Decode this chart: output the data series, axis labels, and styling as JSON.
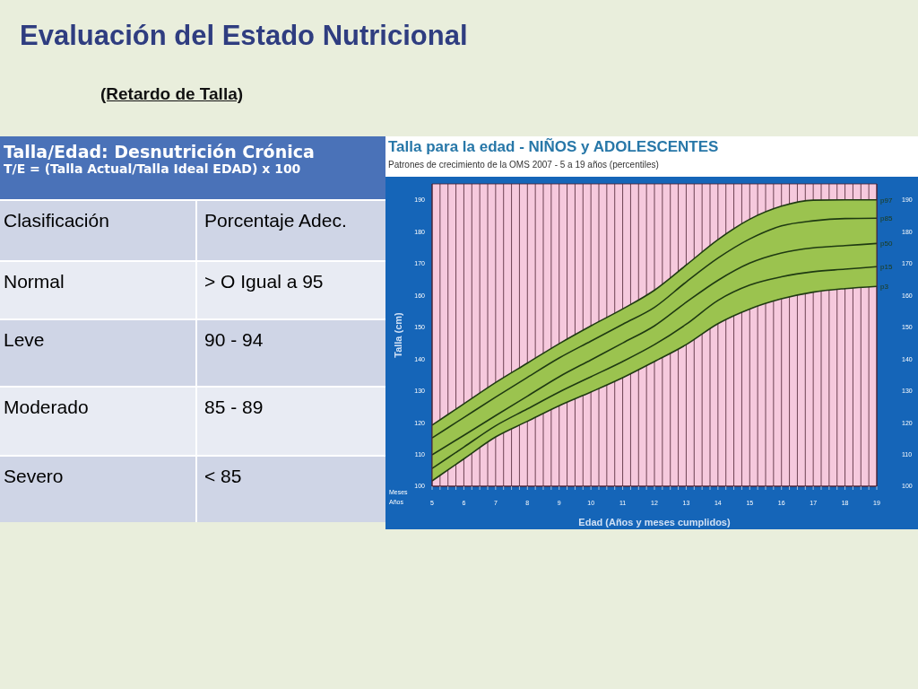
{
  "chart_data": [
    {
      "type": "other",
      "title": "Evaluación del Estado Nutricional",
      "subtitle": "(Retardo de Talla)",
      "annotations": [
        "Talla/Edad: Desnutrición Crónica",
        "T/E = (Talla Actual/Talla Ideal EDAD) x 100",
        "Clasificación",
        "Porcentaje Adec.",
        "Normal",
        "> O Igual a 95",
        "Leve",
        "90 - 94",
        "Moderado",
        "85 - 89",
        "Severo",
        "< 85"
      ]
    },
    {
      "type": "line",
      "title": "Talla para la edad - NIÑOS y ADOLESCENTES",
      "subtitle": "Patrones de crecimiento de la OMS 2007 - 5 a 19 años (percentiles)",
      "xlabel": "Edad (Años y meses cumplidos)",
      "ylabel": "Talla (cm)",
      "annotations": [
        "Meses",
        "Años"
      ],
      "x": [
        5,
        6,
        7,
        8,
        9,
        10,
        11,
        12,
        13,
        14,
        15,
        16,
        17,
        18,
        19
      ],
      "series": [
        {
          "name": "p97",
          "color": "#1f3a12",
          "values": [
            119.2,
            125.9,
            132.6,
            138.7,
            144.8,
            150.4,
            155.7,
            161.6,
            169.5,
            177.5,
            183.9,
            188,
            189.9,
            190,
            190
          ]
        },
        {
          "name": "p85",
          "color": "#1f3a12",
          "values": [
            115.2,
            121.6,
            128,
            134.2,
            140.3,
            145.6,
            150.9,
            156.2,
            164.2,
            171.7,
            177.7,
            181.8,
            183.4,
            184.1,
            184.2
          ]
        },
        {
          "name": "p50",
          "color": "#1f3a12",
          "values": [
            109.9,
            116,
            122.2,
            128.3,
            134.4,
            139.7,
            145,
            150.4,
            157.8,
            164.7,
            170.1,
            173.3,
            174.9,
            175.6,
            176.3
          ],
          "lower": [
            101.7,
            108.6,
            115.5,
            120.4,
            125.3,
            129.6,
            134.1,
            139.2,
            144.5,
            151.1,
            155.7,
            158.9,
            161,
            162.1,
            162.8
          ],
          "upper": [
            119.2,
            125.9,
            132.6,
            138.7,
            144.8,
            150.4,
            155.7,
            161.6,
            169.5,
            177.5,
            183.9,
            188,
            189.9,
            190,
            190
          ]
        },
        {
          "name": "p15",
          "color": "#1f3a12",
          "values": [
            105.6,
            112.3,
            119,
            124.3,
            129.6,
            134.4,
            139.2,
            144.5,
            150.9,
            158.4,
            163.2,
            165.8,
            167.4,
            168.2,
            169
          ]
        },
        {
          "name": "p3",
          "color": "#1f3a12",
          "values": [
            101.7,
            108.6,
            115.5,
            120.4,
            125.3,
            129.6,
            134.1,
            139.2,
            144.5,
            151.1,
            155.7,
            158.9,
            161,
            162.1,
            162.8
          ]
        }
      ],
      "xlim": [
        5,
        19
      ],
      "xticks": [
        5,
        {
          "value": 5.25,
          "label": null
        },
        {
          "value": 5.5,
          "label": null
        },
        {
          "value": 5.75,
          "label": null
        },
        6,
        {
          "value": 6.25,
          "label": null
        },
        {
          "value": 6.5,
          "label": null
        },
        {
          "value": 6.75,
          "label": null
        },
        7,
        {
          "value": 7.25,
          "label": null
        },
        {
          "value": 7.5,
          "label": null
        },
        {
          "value": 7.75,
          "label": null
        },
        8,
        {
          "value": 8.25,
          "label": null
        },
        {
          "value": 8.5,
          "label": null
        },
        {
          "value": 8.75,
          "label": null
        },
        9,
        {
          "value": 9.25,
          "label": null
        },
        {
          "value": 9.5,
          "label": null
        },
        {
          "value": 9.75,
          "label": null
        },
        10,
        {
          "value": 10.25,
          "label": null
        },
        {
          "value": 10.5,
          "label": null
        },
        {
          "value": 10.75,
          "label": null
        },
        11,
        {
          "value": 11.25,
          "label": null
        },
        {
          "value": 11.5,
          "label": null
        },
        {
          "value": 11.75,
          "label": null
        },
        12,
        {
          "value": 12.25,
          "label": null
        },
        {
          "value": 12.5,
          "label": null
        },
        {
          "value": 12.75,
          "label": null
        },
        13,
        {
          "value": 13.25,
          "label": null
        },
        {
          "value": 13.5,
          "label": null
        },
        {
          "value": 13.75,
          "label": null
        },
        14,
        {
          "value": 14.25,
          "label": null
        },
        {
          "value": 14.5,
          "label": null
        },
        {
          "value": 14.75,
          "label": null
        },
        15,
        {
          "value": 15.25,
          "label": null
        },
        {
          "value": 15.5,
          "label": null
        },
        {
          "value": 15.75,
          "label": null
        },
        16,
        {
          "value": 16.25,
          "label": null
        },
        {
          "value": 16.5,
          "label": null
        },
        {
          "value": 16.75,
          "label": null
        },
        17,
        {
          "value": 17.25,
          "label": null
        },
        {
          "value": 17.5,
          "label": null
        },
        {
          "value": 17.75,
          "label": null
        },
        18,
        {
          "value": 18.25,
          "label": null
        },
        {
          "value": 18.5,
          "label": null
        },
        {
          "value": 18.75,
          "label": null
        },
        19
      ],
      "ylim": [
        100,
        195
      ],
      "yticks": [
        100,
        110,
        120,
        130,
        140,
        150,
        160,
        170,
        180,
        190
      ],
      "y2lim": [
        100,
        195
      ],
      "y2ticks": [
        100,
        110,
        120,
        130,
        140,
        150,
        160,
        170,
        180,
        190
      ],
      "grid": true,
      "marker": "none",
      "line_style": "solid"
    }
  ]
}
